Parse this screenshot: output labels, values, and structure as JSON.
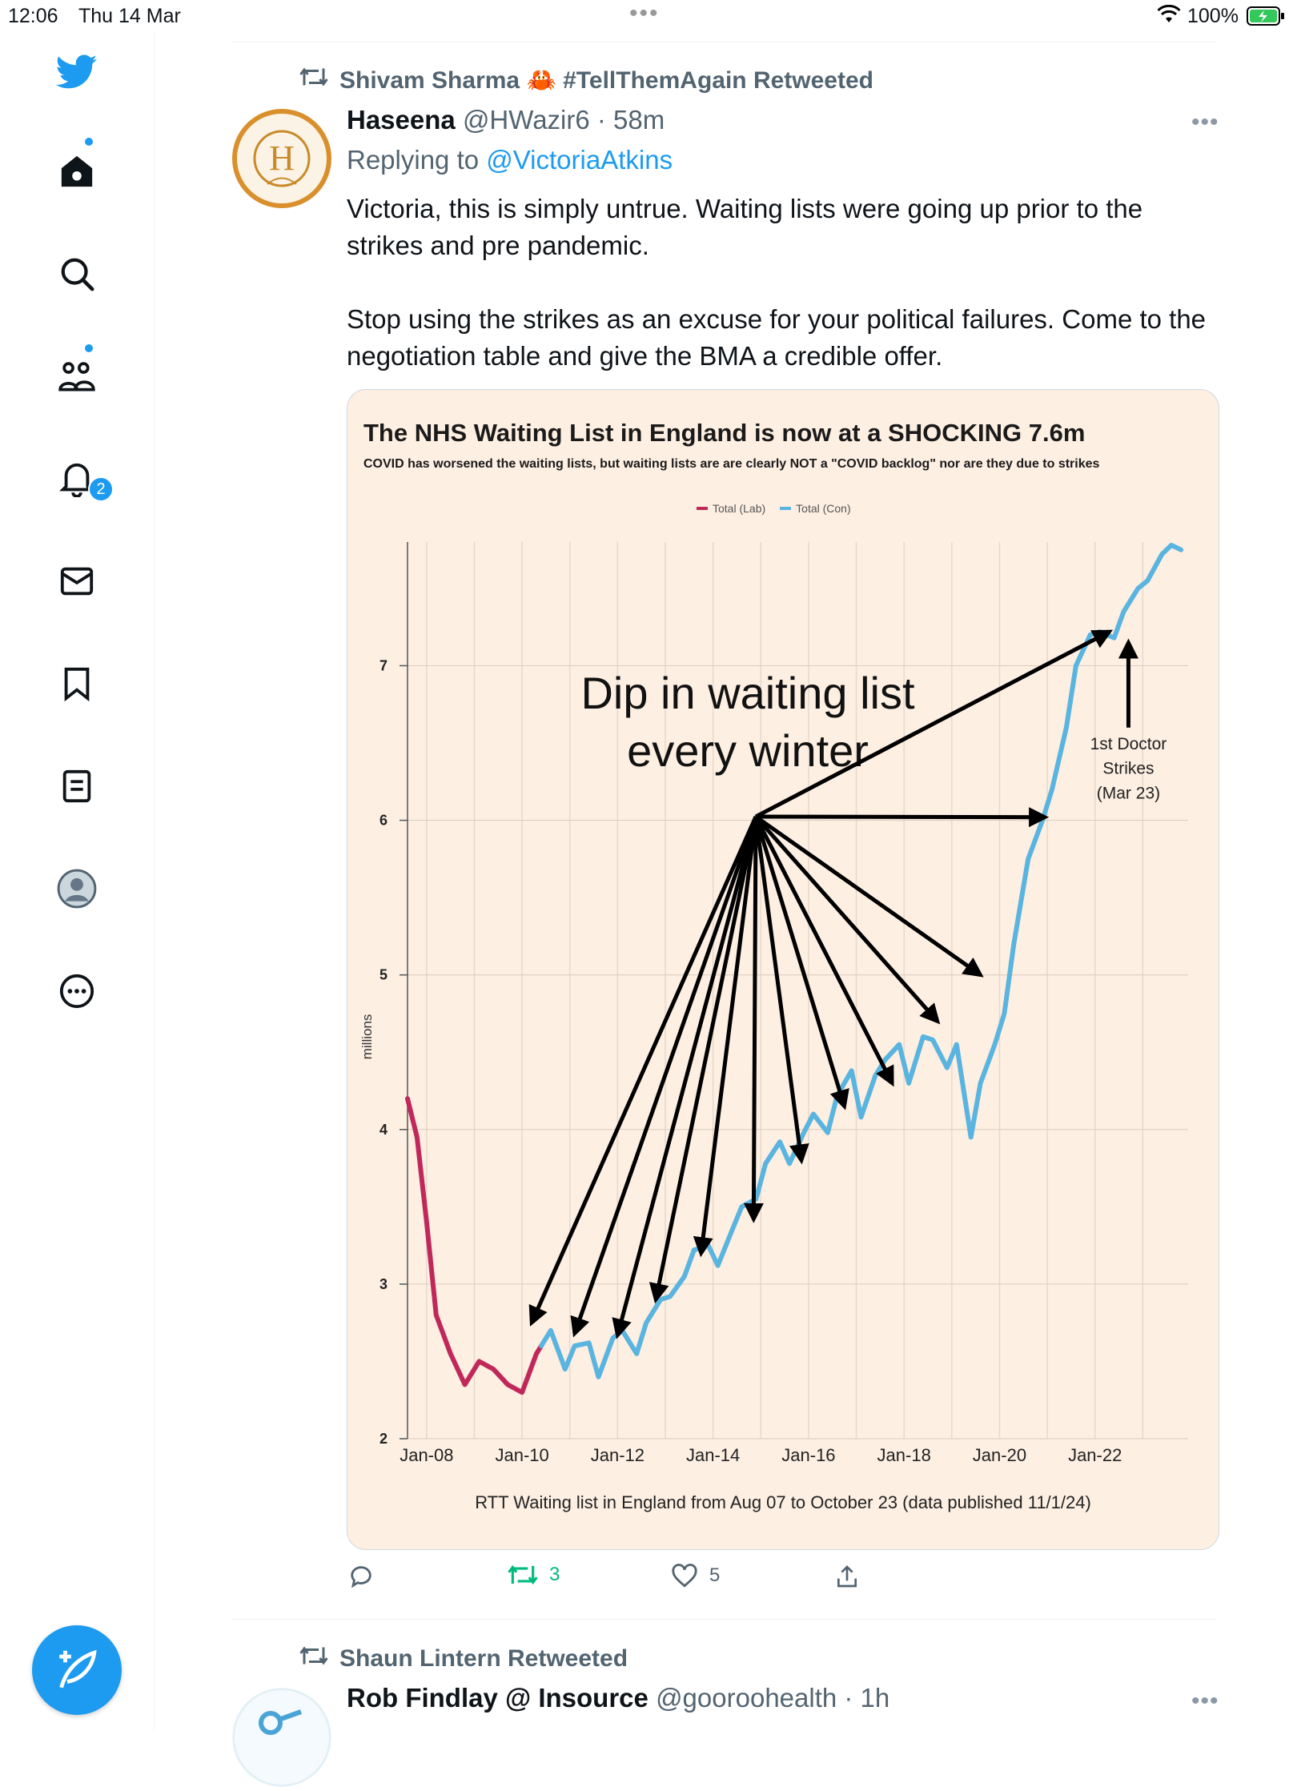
{
  "status_bar": {
    "time": "12:06",
    "date": "Thu 14 Mar",
    "battery": "100%"
  },
  "sidebar": {
    "items": [
      "twitter-logo",
      "home",
      "explore",
      "communities",
      "notifications",
      "messages",
      "bookmarks",
      "lists",
      "profile",
      "more"
    ],
    "notifications_badge": "2"
  },
  "tweet": {
    "retweeted_by": "Shivam Sharma 🦀 #TellThemAgain Retweeted",
    "author_name": "Haseena",
    "author_handle": "@HWazir6 · 58m",
    "replying_prefix": "Replying to ",
    "replying_to": "@VictoriaAtkins",
    "paragraphs": [
      "Victoria, this is simply untrue. Waiting lists were going up prior to the strikes and pre pandemic.",
      "Stop using the strikes as an excuse for your political failures. Come to the negotiation table and give the BMA a credible offer."
    ],
    "replies": "",
    "retweets": "3",
    "likes": "5"
  },
  "chart_data": {
    "type": "line",
    "title": "The NHS Waiting List in England is now at a SHOCKING 7.6m",
    "subtitle": "COVID has worsened the waiting lists, but waiting lists are are clearly NOT a \"COVID backlog\" nor are they due to strikes",
    "ylabel": "millions",
    "ylim": [
      2,
      7.8
    ],
    "yticks": [
      "2",
      "3",
      "4",
      "5",
      "6",
      "7"
    ],
    "xlabel": "RTT Waiting list in England from Aug 07 to October 23 (data published 11/1/24)",
    "xticks": [
      "Jan-08",
      "Jan-10",
      "Jan-12",
      "Jan-14",
      "Jan-16",
      "Jan-18",
      "Jan-20",
      "Jan-22"
    ],
    "series": [
      {
        "name": "Total (Lab)",
        "color": "#c0285a",
        "x": [
          2007.6,
          2007.8,
          2008.0,
          2008.2,
          2008.5,
          2008.8,
          2009.1,
          2009.4,
          2009.7,
          2010.0,
          2010.3,
          2010.4
        ],
        "values": [
          4.2,
          3.95,
          3.4,
          2.8,
          2.55,
          2.35,
          2.5,
          2.45,
          2.35,
          2.3,
          2.55,
          2.6
        ]
      },
      {
        "name": "Total (Con)",
        "color": "#5ab4e0",
        "x": [
          2010.4,
          2010.6,
          2010.9,
          2011.1,
          2011.4,
          2011.6,
          2011.9,
          2012.1,
          2012.4,
          2012.6,
          2012.9,
          2013.1,
          2013.4,
          2013.6,
          2013.9,
          2014.1,
          2014.4,
          2014.6,
          2014.9,
          2015.1,
          2015.4,
          2015.6,
          2015.9,
          2016.1,
          2016.4,
          2016.6,
          2016.9,
          2017.1,
          2017.4,
          2017.6,
          2017.9,
          2018.1,
          2018.4,
          2018.6,
          2018.9,
          2019.1,
          2019.4,
          2019.6,
          2019.9,
          2020.1,
          2020.3,
          2020.6,
          2020.9,
          2021.1,
          2021.4,
          2021.6,
          2021.9,
          2022.1,
          2022.4,
          2022.6,
          2022.9,
          2023.1,
          2023.4,
          2023.6,
          2023.8
        ],
        "values": [
          2.6,
          2.7,
          2.45,
          2.6,
          2.62,
          2.4,
          2.65,
          2.7,
          2.55,
          2.75,
          2.9,
          2.92,
          3.05,
          3.22,
          3.25,
          3.12,
          3.35,
          3.5,
          3.55,
          3.78,
          3.92,
          3.78,
          3.98,
          4.1,
          3.98,
          4.22,
          4.38,
          4.08,
          4.35,
          4.45,
          4.55,
          4.3,
          4.6,
          4.58,
          4.4,
          4.55,
          3.95,
          4.3,
          4.55,
          4.75,
          5.2,
          5.75,
          6.0,
          6.2,
          6.6,
          7.0,
          7.2,
          7.22,
          7.18,
          7.35,
          7.5,
          7.55,
          7.72,
          7.78,
          7.75
        ]
      }
    ],
    "annotations": [
      {
        "text": "Dip in waiting list",
        "text2": "every winter"
      },
      {
        "text": "1st Doctor",
        "text2": "Strikes",
        "text3": "(Mar 23)"
      }
    ]
  },
  "next_tweet": {
    "retweeted_by": "Shaun Lintern Retweeted",
    "author_name": "Rob Findlay @ Insource",
    "author_handle": "@gooroohealth · 1h"
  }
}
